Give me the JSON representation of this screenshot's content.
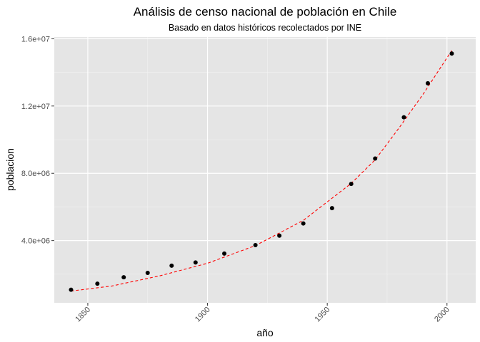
{
  "chart_data": {
    "type": "scatter",
    "title": "Análisis de censo nacional de población en Chile",
    "subtitle": "Basado en datos históricos recolectados por INE",
    "xlabel": "año",
    "ylabel": "poblacion",
    "xlim": [
      1836,
      2012
    ],
    "ylim": [
      300000,
      16100000
    ],
    "x_ticks": [
      1850,
      1900,
      1950,
      2000
    ],
    "x_tick_labels": [
      "1850",
      "1900",
      "1950",
      "2000"
    ],
    "y_ticks": [
      4000000,
      8000000,
      12000000,
      16000000
    ],
    "y_tick_labels": [
      "4.0e+06",
      "8.0e+06",
      "1.2e+07",
      "1.6e+07"
    ],
    "grid": true,
    "panel_background": "#e5e5e5",
    "point_color": "#000000",
    "fit_color": "#ff0000",
    "series": [
      {
        "values": [
          {
            "x": 1843,
            "y": 1080000
          },
          {
            "x": 1854,
            "y": 1440000
          },
          {
            "x": 1865,
            "y": 1820000
          },
          {
            "x": 1875,
            "y": 2080000
          },
          {
            "x": 1885,
            "y": 2510000
          },
          {
            "x": 1895,
            "y": 2700000
          },
          {
            "x": 1907,
            "y": 3230000
          },
          {
            "x": 1920,
            "y": 3730000
          },
          {
            "x": 1930,
            "y": 4290000
          },
          {
            "x": 1940,
            "y": 5020000
          },
          {
            "x": 1952,
            "y": 5930000
          },
          {
            "x": 1960,
            "y": 7370000
          },
          {
            "x": 1970,
            "y": 8880000
          },
          {
            "x": 1982,
            "y": 11330000
          },
          {
            "x": 1992,
            "y": 13350000
          },
          {
            "x": 2002,
            "y": 15120000
          }
        ]
      }
    ],
    "trend": {
      "style": "dashed",
      "values": [
        {
          "x": 1843,
          "y": 1000000
        },
        {
          "x": 1860,
          "y": 1300000
        },
        {
          "x": 1880,
          "y": 1900000
        },
        {
          "x": 1900,
          "y": 2650000
        },
        {
          "x": 1920,
          "y": 3700000
        },
        {
          "x": 1940,
          "y": 5200000
        },
        {
          "x": 1960,
          "y": 7400000
        },
        {
          "x": 1970,
          "y": 8800000
        },
        {
          "x": 1980,
          "y": 10700000
        },
        {
          "x": 1990,
          "y": 12700000
        },
        {
          "x": 2002,
          "y": 15300000
        }
      ]
    }
  }
}
